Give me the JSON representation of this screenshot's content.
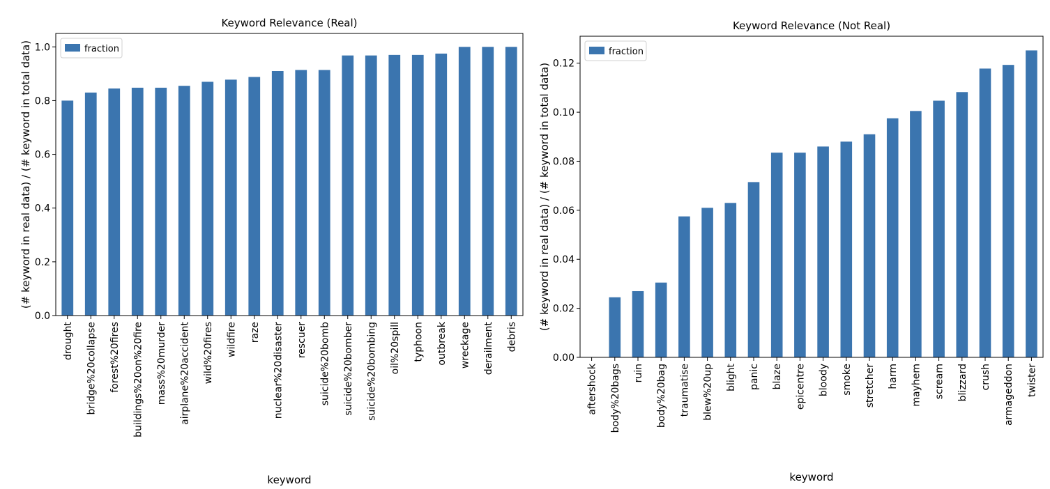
{
  "chart_data": [
    {
      "type": "bar",
      "title": "Keyword Relevance (Real)",
      "xlabel": "keyword",
      "ylabel": "(# keyword in real data) / (# keyword in total data)",
      "ylim": [
        0,
        1.05
      ],
      "yticks": [
        "0.0",
        "0.2",
        "0.4",
        "0.6",
        "0.8",
        "1.0"
      ],
      "ytick_values": [
        0,
        0.2,
        0.4,
        0.6,
        0.8,
        1.0
      ],
      "legend": "top-left",
      "grid": false,
      "categories": [
        "drought",
        "bridge%20collapse",
        "forest%20fires",
        "buildings%20on%20fire",
        "mass%20murder",
        "airplane%20accident",
        "wild%20fires",
        "wildfire",
        "raze",
        "nuclear%20disaster",
        "rescuer",
        "suicide%20bomb",
        "suicide%20bomber",
        "suicide%20bombing",
        "oil%20spill",
        "typhoon",
        "outbreak",
        "wreckage",
        "derailment",
        "debris"
      ],
      "series": [
        {
          "name": "fraction",
          "values": [
            0.8,
            0.83,
            0.845,
            0.848,
            0.848,
            0.855,
            0.87,
            0.878,
            0.888,
            0.91,
            0.914,
            0.914,
            0.968,
            0.968,
            0.97,
            0.97,
            0.975,
            1.0,
            1.0,
            1.0
          ]
        }
      ]
    },
    {
      "type": "bar",
      "title": "Keyword Relevance (Not Real)",
      "xlabel": "keyword",
      "ylabel": "(# keyword in real data) / (# keyword in total data)",
      "ylim": [
        0,
        0.131
      ],
      "yticks": [
        "0.00",
        "0.02",
        "0.04",
        "0.06",
        "0.08",
        "0.10",
        "0.12"
      ],
      "ytick_values": [
        0,
        0.02,
        0.04,
        0.06,
        0.08,
        0.1,
        0.12
      ],
      "legend": "top-left",
      "grid": false,
      "categories": [
        "aftershock",
        "body%20bags",
        "ruin",
        "body%20bag",
        "traumatise",
        "blew%20up",
        "blight",
        "panic",
        "blaze",
        "epicentre",
        "bloody",
        "smoke",
        "stretcher",
        "harm",
        "mayhem",
        "scream",
        "blizzard",
        "crush",
        "armageddon",
        "twister"
      ],
      "series": [
        {
          "name": "fraction",
          "values": [
            0.0,
            0.0245,
            0.027,
            0.0305,
            0.0575,
            0.061,
            0.063,
            0.0715,
            0.0835,
            0.0835,
            0.086,
            0.088,
            0.091,
            0.0975,
            0.1005,
            0.1047,
            0.1082,
            0.1178,
            0.1193,
            0.1252
          ]
        }
      ]
    }
  ]
}
